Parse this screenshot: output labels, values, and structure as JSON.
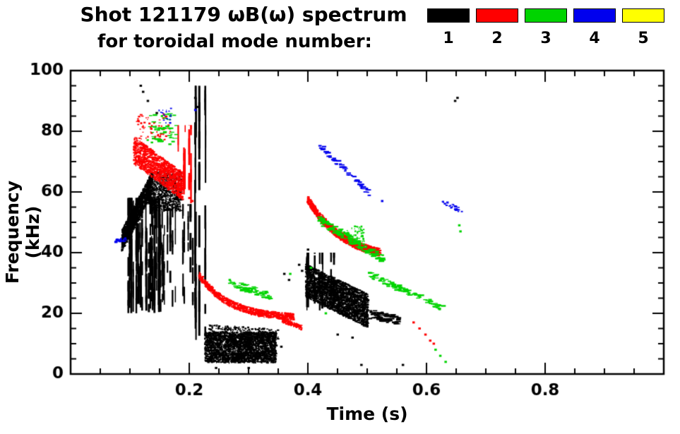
{
  "chart_data": {
    "type": "scatter",
    "title": "Shot 121179 ωB(ω) spectrum",
    "subtitle": "for toroidal mode number:",
    "xlabel": "Time (s)",
    "ylabel": "Frequency (kHz)",
    "xlim": [
      0,
      1
    ],
    "ylim": [
      0,
      100
    ],
    "xticks": [
      {
        "v": 0.2,
        "label": "0.2"
      },
      {
        "v": 0.4,
        "label": "0.4"
      },
      {
        "v": 0.6,
        "label": "0.6"
      },
      {
        "v": 0.8,
        "label": "0.8"
      }
    ],
    "yticks": [
      {
        "v": 0,
        "label": "0"
      },
      {
        "v": 20,
        "label": "20"
      },
      {
        "v": 40,
        "label": "40"
      },
      {
        "v": 60,
        "label": "60"
      },
      {
        "v": 80,
        "label": "80"
      },
      {
        "v": 100,
        "label": "100"
      }
    ],
    "x_minor_step": 0.05,
    "y_minor_step": 5,
    "grid": false,
    "legend_position": "top-right",
    "legend": [
      {
        "label": "1",
        "color": "#000000"
      },
      {
        "label": "2",
        "color": "#ff0000"
      },
      {
        "label": "3",
        "color": "#00d400"
      },
      {
        "label": "4",
        "color": "#0000ee"
      },
      {
        "label": "5",
        "color": "#ffff00"
      }
    ],
    "series": [
      {
        "name": "1",
        "color": "#000000",
        "clusters": [
          {
            "kind": "band",
            "seed": 1,
            "t": [
              0.085,
              0.135
            ],
            "f": [
              44,
              63
            ],
            "curve": "lin",
            "thick": 7,
            "n": 1300
          },
          {
            "kind": "blob",
            "seed": 2,
            "t": [
              0.133,
              0.186
            ],
            "f": [
              54,
              67
            ],
            "n": 750
          },
          {
            "kind": "vstreaks",
            "seed": 3,
            "t": [
              0.095,
              0.15
            ],
            "f": [
              20,
              58
            ],
            "streaks": 34,
            "per": 7,
            "seg": [
              2,
              10
            ]
          },
          {
            "kind": "vstreaks",
            "seed": 4,
            "t": [
              0.148,
              0.205
            ],
            "f": [
              20,
              56
            ],
            "streaks": 16,
            "per": 5,
            "seg": [
              2,
              8
            ]
          },
          {
            "kind": "vstreaks",
            "seed": 5,
            "t": [
              0.203,
              0.228
            ],
            "f": [
              8,
              95
            ],
            "streaks": 7,
            "per": 8,
            "seg": [
              3,
              16
            ]
          },
          {
            "kind": "blob",
            "seed": 6,
            "t": [
              0.225,
              0.345
            ],
            "f": [
              4,
              14
            ],
            "n": 2800
          },
          {
            "kind": "band",
            "seed": 7,
            "t": [
              0.23,
              0.35
            ],
            "f": [
              14.5,
              13
            ],
            "curve": "lin",
            "thick": 4,
            "n": 260
          },
          {
            "kind": "band",
            "seed": 8,
            "t": [
              0.395,
              0.5
            ],
            "f": [
              31,
              21
            ],
            "curve": "lin",
            "thick": 11,
            "n": 2500
          },
          {
            "kind": "vstreaks",
            "seed": 9,
            "t": [
              0.395,
              0.455
            ],
            "f": [
              20,
              40
            ],
            "streaks": 10,
            "per": 4,
            "seg": [
              2,
              7
            ]
          },
          {
            "kind": "band",
            "seed": 10,
            "t": [
              0.5,
              0.55
            ],
            "f": [
              20,
              18
            ],
            "curve": "lin",
            "thick": 3,
            "n": 90,
            "dash": true
          },
          {
            "kind": "dots",
            "seed": 11,
            "pts": [
              [
                0.118,
                95
              ],
              [
                0.122,
                93
              ],
              [
                0.13,
                90
              ],
              [
                0.21,
                91
              ],
              [
                0.214,
                88
              ],
              [
                0.648,
                90
              ],
              [
                0.652,
                91
              ],
              [
                0.4,
                41
              ],
              [
                0.49,
                3
              ],
              [
                0.56,
                3
              ],
              [
                0.245,
                2
              ],
              [
                0.3,
                2
              ],
              [
                0.355,
                9
              ],
              [
                0.36,
                33
              ],
              [
                0.368,
                31
              ],
              [
                0.385,
                36
              ],
              [
                0.39,
                34
              ],
              [
                0.145,
                86
              ],
              [
                0.45,
                13
              ],
              [
                0.475,
                12
              ]
            ]
          }
        ]
      },
      {
        "name": "2",
        "color": "#ff0000",
        "clusters": [
          {
            "kind": "band",
            "seed": 21,
            "t": [
              0.105,
              0.188
            ],
            "f": [
              74,
              62
            ],
            "curve": "lin",
            "thick": 9,
            "n": 1100
          },
          {
            "kind": "blob",
            "seed": 22,
            "t": [
              0.11,
              0.168
            ],
            "f": [
              77,
              86
            ],
            "n": 80
          },
          {
            "kind": "vstreaks",
            "seed": 23,
            "t": [
              0.18,
              0.202
            ],
            "f": [
              55,
              82
            ],
            "streaks": 5,
            "per": 5,
            "seg": [
              3,
              10
            ]
          },
          {
            "kind": "band",
            "seed": 24,
            "t": [
              0.215,
              0.375
            ],
            "f": [
              33,
              18.5
            ],
            "curve": "exp",
            "k": 3.2,
            "thick": 2.2,
            "n": 850
          },
          {
            "kind": "band",
            "seed": 25,
            "t": [
              0.355,
              0.388
            ],
            "f": [
              18,
              15.5
            ],
            "curve": "lin",
            "thick": 1.5,
            "n": 110
          },
          {
            "kind": "band",
            "seed": 26,
            "t": [
              0.398,
              0.52
            ],
            "f": [
              58,
              37.5
            ],
            "curve": "exp",
            "k": 2.0,
            "thick": 2.6,
            "n": 1050
          },
          {
            "kind": "dots",
            "seed": 27,
            "pts": [
              [
                0.578,
                17
              ],
              [
                0.588,
                15
              ],
              [
                0.598,
                13
              ],
              [
                0.606,
                11
              ],
              [
                0.612,
                10
              ],
              [
                0.2,
                58
              ],
              [
                0.205,
                57
              ]
            ]
          }
        ]
      },
      {
        "name": "3",
        "color": "#00d400",
        "clusters": [
          {
            "kind": "blob",
            "seed": 31,
            "t": [
              0.128,
              0.175
            ],
            "f": [
              76,
              86
            ],
            "n": 45,
            "dash": true
          },
          {
            "kind": "band",
            "seed": 32,
            "t": [
              0.265,
              0.335
            ],
            "f": [
              30,
              26
            ],
            "curve": "lin",
            "thick": 2.5,
            "n": 70,
            "dash": true
          },
          {
            "kind": "band",
            "seed": 33,
            "t": [
              0.415,
              0.525
            ],
            "f": [
              51,
              38
            ],
            "curve": "lin",
            "thick": 2.5,
            "n": 130,
            "dash": true
          },
          {
            "kind": "blob",
            "seed": 34,
            "t": [
              0.465,
              0.495
            ],
            "f": [
              43,
              49
            ],
            "n": 60
          },
          {
            "kind": "band",
            "seed": 35,
            "t": [
              0.5,
              0.625
            ],
            "f": [
              33,
              22
            ],
            "curve": "lin",
            "thick": 2,
            "n": 95,
            "dash": true
          },
          {
            "kind": "dots",
            "seed": 36,
            "pts": [
              [
                0.655,
                49
              ],
              [
                0.657,
                47
              ],
              [
                0.615,
                8
              ],
              [
                0.623,
                6
              ],
              [
                0.632,
                4
              ],
              [
                0.555,
                28
              ],
              [
                0.37,
                33
              ],
              [
                0.405,
                35
              ],
              [
                0.268,
                31
              ],
              [
                0.43,
                20
              ]
            ]
          }
        ]
      },
      {
        "name": "4",
        "color": "#0000ee",
        "clusters": [
          {
            "kind": "band",
            "seed": 41,
            "t": [
              0.073,
              0.093
            ],
            "f": [
              44,
              44.5
            ],
            "curve": "lin",
            "thick": 1.2,
            "n": 40
          },
          {
            "kind": "blob",
            "seed": 42,
            "t": [
              0.148,
              0.168
            ],
            "f": [
              83,
              88
            ],
            "n": 18
          },
          {
            "kind": "band",
            "seed": 43,
            "t": [
              0.415,
              0.505
            ],
            "f": [
              76,
              59
            ],
            "curve": "lin",
            "thick": 2,
            "n": 55,
            "dash": true
          },
          {
            "kind": "band",
            "seed": 44,
            "t": [
              0.625,
              0.658
            ],
            "f": [
              57,
              54
            ],
            "curve": "lin",
            "thick": 1.5,
            "n": 30
          },
          {
            "kind": "dots",
            "seed": 45,
            "pts": [
              [
                0.21,
                87
              ],
              [
                0.525,
                57
              ]
            ]
          }
        ]
      },
      {
        "name": "5",
        "color": "#ffff00",
        "clusters": []
      }
    ]
  }
}
